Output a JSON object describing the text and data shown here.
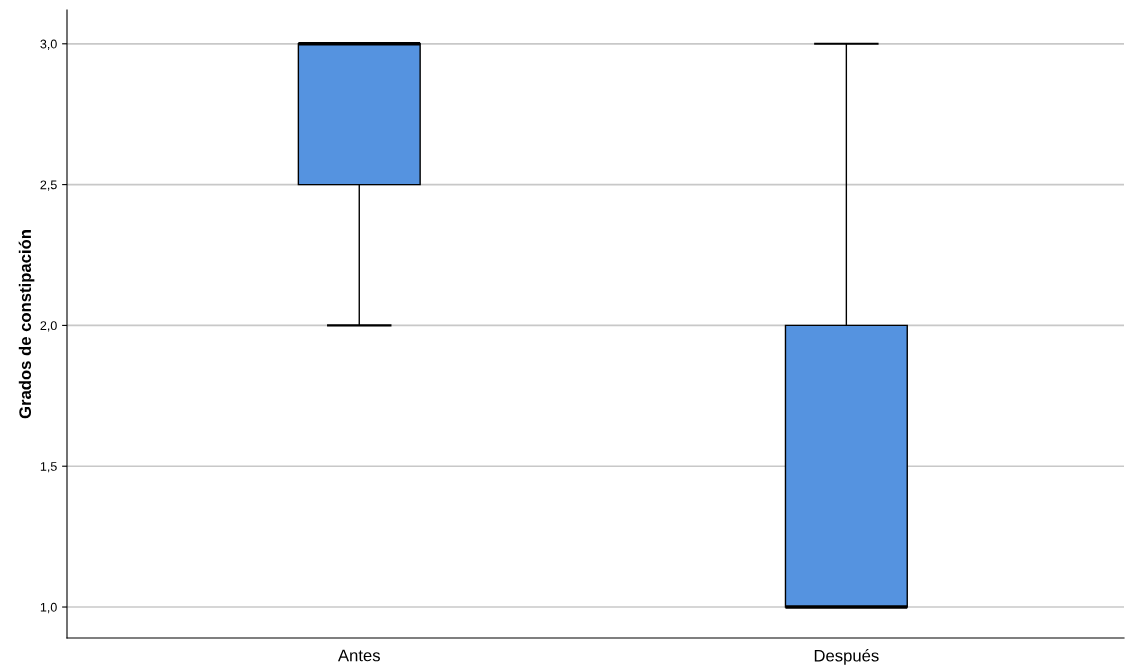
{
  "chart_data": {
    "type": "box",
    "ylabel": "Grados de constipación",
    "categories": [
      "Antes",
      "Después"
    ],
    "series": [
      {
        "color": "#5593e0",
        "boxes": [
          {
            "low": 2.0,
            "q1": 2.5,
            "median": 3.0,
            "q3": 3.0,
            "high": 3.0
          },
          {
            "low": 1.0,
            "q1": 1.0,
            "median": 1.0,
            "q3": 2.0,
            "high": 3.0
          }
        ]
      }
    ],
    "ylim": [
      0.89,
      3.12
    ],
    "yticks": [
      {
        "value": 1.0,
        "label": "1,0"
      },
      {
        "value": 1.5,
        "label": "1,5"
      },
      {
        "value": 2.0,
        "label": "2,0"
      },
      {
        "value": 2.5,
        "label": "2,5"
      },
      {
        "value": 3.0,
        "label": "3,0"
      }
    ],
    "grid": "y"
  }
}
